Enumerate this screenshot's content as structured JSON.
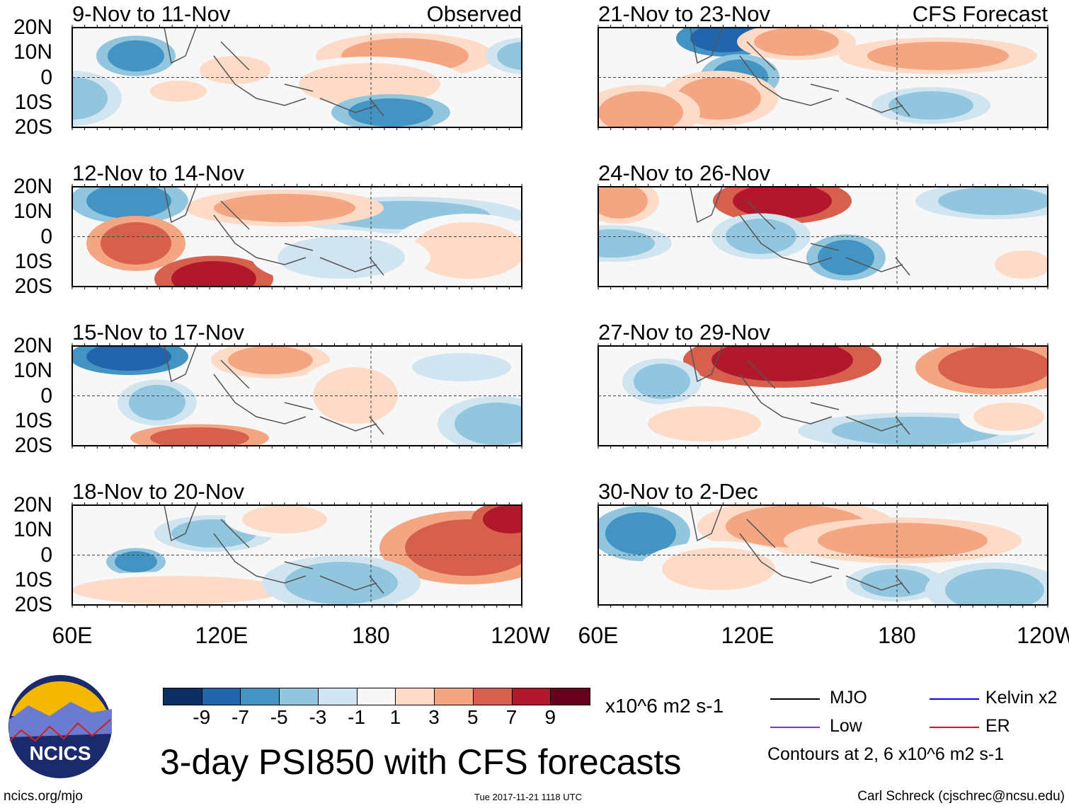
{
  "panels": [
    {
      "title": "9-Nov to 11-Nov",
      "right_label": "Observed",
      "column": "left",
      "row": 0
    },
    {
      "title": "12-Nov to 14-Nov",
      "right_label": "",
      "column": "left",
      "row": 1
    },
    {
      "title": "15-Nov to 17-Nov",
      "right_label": "",
      "column": "left",
      "row": 2
    },
    {
      "title": "18-Nov to 20-Nov",
      "right_label": "",
      "column": "left",
      "row": 3
    },
    {
      "title": "21-Nov to 23-Nov",
      "right_label": "CFS Forecast",
      "column": "right",
      "row": 0
    },
    {
      "title": "24-Nov to 26-Nov",
      "right_label": "",
      "column": "right",
      "row": 1
    },
    {
      "title": "27-Nov to 29-Nov",
      "right_label": "",
      "column": "right",
      "row": 2
    },
    {
      "title": "30-Nov to 2-Dec",
      "right_label": "",
      "column": "right",
      "row": 3
    }
  ],
  "lat_labels": [
    "20N",
    "10N",
    "0",
    "10S",
    "20S"
  ],
  "lon_labels": [
    "60E",
    "120E",
    "180",
    "120W"
  ],
  "colorbar": {
    "colors": [
      "#0b2f63",
      "#2166ac",
      "#4393c3",
      "#92c5de",
      "#d1e5f0",
      "#f7f7f7",
      "#fddbc7",
      "#f4a582",
      "#d6604d",
      "#b2182b",
      "#67001f"
    ],
    "labels": [
      "-9",
      "-7",
      "-5",
      "-3",
      "-1",
      "1",
      "3",
      "5",
      "7",
      "9"
    ],
    "units": "x10^6 m2 s-1"
  },
  "title": "3-day PSI850 with CFS forecasts",
  "legend": {
    "items": [
      {
        "label": "MJO",
        "color": "#000000"
      },
      {
        "label": "Kelvin x2",
        "color": "#0000ff"
      },
      {
        "label": "Low",
        "color": "#a020f0"
      },
      {
        "label": "ER",
        "color": "#ff0000"
      }
    ],
    "contours_note": "Contours at 2, 6 x10^6 m2 s-1"
  },
  "logo": {
    "text": "NCICS"
  },
  "footer": {
    "url": "ncics.org/mjo",
    "timestamp": "Tue 2017-11-21 1118 UTC",
    "credit": "Carl Schreck (cjschrec@ncsu.edu)"
  }
}
